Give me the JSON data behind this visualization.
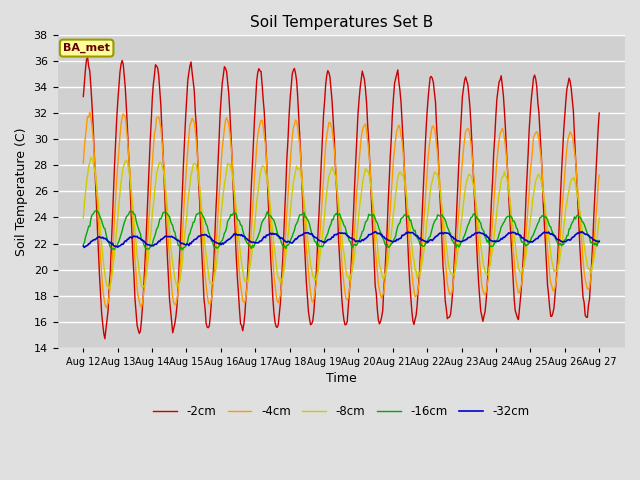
{
  "title": "Soil Temperatures Set B",
  "xlabel": "Time",
  "ylabel": "Soil Temperature (C)",
  "ylim": [
    14,
    38
  ],
  "yticks": [
    14,
    16,
    18,
    20,
    22,
    24,
    26,
    28,
    30,
    32,
    34,
    36,
    38
  ],
  "x_labels": [
    "Aug 12",
    "Aug 13",
    "Aug 14",
    "Aug 15",
    "Aug 16",
    "Aug 17",
    "Aug 18",
    "Aug 19",
    "Aug 20",
    "Aug 21",
    "Aug 22",
    "Aug 23",
    "Aug 24",
    "Aug 25",
    "Aug 26",
    "Aug 27"
  ],
  "colors": {
    "-2cm": "#cc0000",
    "-4cm": "#ff9900",
    "-8cm": "#cccc00",
    "-16cm": "#00aa00",
    "-32cm": "#0000cc"
  },
  "legend_label": "BA_met",
  "background_color": "#e0e0e0",
  "plot_bg_color": "#d0d0d0",
  "title_fontsize": 11,
  "axis_fontsize": 9,
  "tick_fontsize": 8,
  "n_points": 480
}
